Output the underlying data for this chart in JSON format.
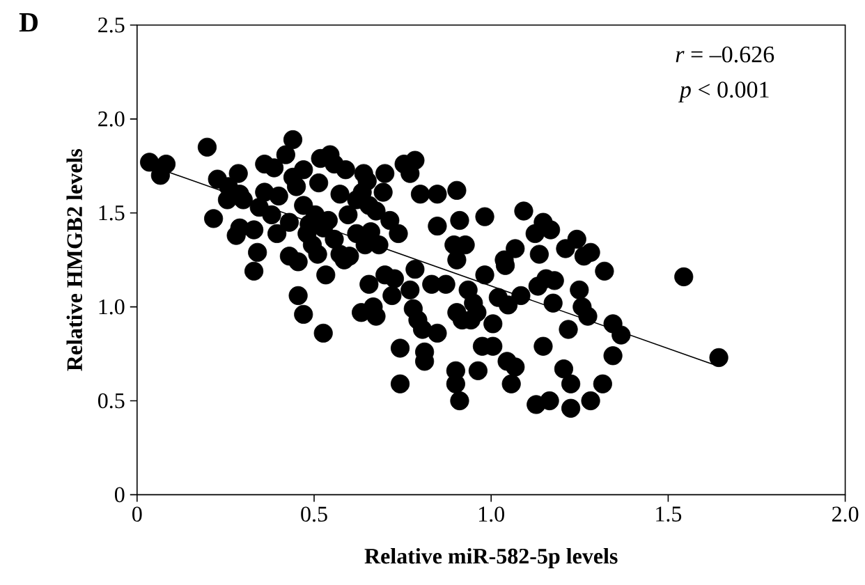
{
  "chart_data": {
    "type": "scatter",
    "title": "D",
    "xlabel": "Relative miR-582-5p levels",
    "ylabel": "Relative HMGB2 levels",
    "annotations": [
      "*r* = –0.626",
      "*p* < 0.001"
    ],
    "xlim": [
      0,
      2
    ],
    "ylim": [
      0,
      2.5
    ],
    "xticks": [
      0,
      0.5,
      {
        "value": 1,
        "label": "1.0"
      },
      1.5,
      {
        "value": 2,
        "label": "2.0"
      }
    ],
    "yticks": [
      0,
      0.5,
      {
        "value": 1,
        "label": "1.0"
      },
      1.5,
      {
        "value": 2,
        "label": "2.0"
      },
      2.5
    ],
    "marker": "circle",
    "series": [
      {
        "color": "#000000",
        "x": [
          0.035,
          0.066,
          0.082,
          0.198,
          0.216,
          0.227,
          0.258,
          0.286,
          0.255,
          0.29,
          0.3,
          0.28,
          0.29,
          0.33,
          0.34,
          0.33,
          0.345,
          0.36,
          0.36,
          0.38,
          0.395,
          0.387,
          0.4,
          0.42,
          0.44,
          0.44,
          0.47,
          0.45,
          0.43,
          0.455,
          0.455,
          0.47,
          0.47,
          0.48,
          0.495,
          0.51,
          0.513,
          0.518,
          0.545,
          0.526,
          0.533,
          0.54,
          0.557,
          0.573,
          0.589,
          0.585,
          0.6,
          0.596,
          0.62,
          0.64,
          0.636,
          0.644,
          0.65,
          0.66,
          0.675,
          0.683,
          0.7,
          0.695,
          0.714,
          0.738,
          0.633,
          0.655,
          0.675,
          0.667,
          0.7,
          0.72,
          0.727,
          0.743,
          0.743,
          0.754,
          0.771,
          0.785,
          0.8,
          0.771,
          0.785,
          0.78,
          0.793,
          0.806,
          0.812,
          0.812,
          0.832,
          0.848,
          0.848,
          0.872,
          0.848,
          0.903,
          0.911,
          0.895,
          0.927,
          0.903,
          0.9,
          0.9,
          0.911,
          0.903,
          0.918,
          0.935,
          0.95,
          0.943,
          0.96,
          0.963,
          0.975,
          0.982,
          0.982,
          1.005,
          1.005,
          1.02,
          1.037,
          1.04,
          1.048,
          1.045,
          1.068,
          1.068,
          1.057,
          1.084,
          1.092,
          1.124,
          1.127,
          1.136,
          1.132,
          1.147,
          1.155,
          1.147,
          1.168,
          1.165,
          1.179,
          1.175,
          1.21,
          1.218,
          1.205,
          1.225,
          1.225,
          1.242,
          1.249,
          1.257,
          1.262,
          1.273,
          1.281,
          1.281,
          1.315,
          1.32,
          1.344,
          1.344,
          1.367,
          1.544,
          1.643,
          0.486,
          0.526,
          0.557,
          0.62,
          0.655,
          0.43,
          0.503,
          0.573
        ],
        "values": [
          1.77,
          1.7,
          1.76,
          1.85,
          1.47,
          1.68,
          1.64,
          1.71,
          1.57,
          1.6,
          1.57,
          1.38,
          1.42,
          1.41,
          1.29,
          1.19,
          1.53,
          1.76,
          1.61,
          1.49,
          1.39,
          1.74,
          1.59,
          1.81,
          1.89,
          1.69,
          1.73,
          1.64,
          1.27,
          1.24,
          1.06,
          0.96,
          1.54,
          1.39,
          1.33,
          1.28,
          1.66,
          1.79,
          1.81,
          0.86,
          1.17,
          1.46,
          1.76,
          1.6,
          1.73,
          1.25,
          1.27,
          1.49,
          1.39,
          1.71,
          1.61,
          1.33,
          1.67,
          1.4,
          1.51,
          1.33,
          1.71,
          1.61,
          1.46,
          1.39,
          0.97,
          1.12,
          0.95,
          1.0,
          1.17,
          1.06,
          1.15,
          0.78,
          0.59,
          1.76,
          1.71,
          1.78,
          1.6,
          1.09,
          1.2,
          0.99,
          0.93,
          0.88,
          0.76,
          0.71,
          1.12,
          1.43,
          1.6,
          1.12,
          0.86,
          1.62,
          1.46,
          1.33,
          1.33,
          1.25,
          0.66,
          0.59,
          0.5,
          0.97,
          0.93,
          1.09,
          1.02,
          0.93,
          0.97,
          0.66,
          0.79,
          1.48,
          1.17,
          0.79,
          0.91,
          1.05,
          1.25,
          1.22,
          1.01,
          0.71,
          1.31,
          0.68,
          0.59,
          1.06,
          1.51,
          1.39,
          0.48,
          1.28,
          1.11,
          1.45,
          1.15,
          0.79,
          1.41,
          0.5,
          1.14,
          1.02,
          1.31,
          0.88,
          0.67,
          0.59,
          0.46,
          1.36,
          1.09,
          1.0,
          1.27,
          0.95,
          1.29,
          0.5,
          0.59,
          1.19,
          0.91,
          0.74,
          0.85,
          1.16,
          0.73,
          1.44,
          1.42,
          1.36,
          1.57,
          1.54,
          1.45,
          1.49,
          1.28
        ]
      },
      {
        "type": "line",
        "marker": "none",
        "color": "#000000",
        "x": [
          0.07,
          1.64
        ],
        "values": [
          1.73,
          0.685
        ]
      }
    ]
  }
}
